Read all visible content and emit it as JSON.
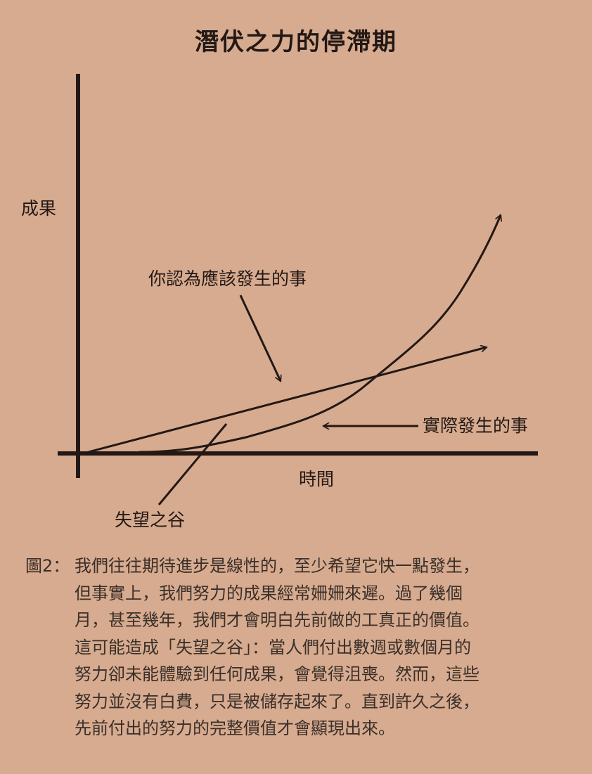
{
  "title": "潛伏之力的停滯期",
  "diagram": {
    "y_axis_label": "成果",
    "x_axis_label": "時間",
    "expected_label": "你認為應該發生的事",
    "actual_label": "實際發生的事",
    "valley_label": "失望之谷",
    "line_color": "#231815",
    "background": "#d7ab8f"
  },
  "caption": {
    "prefix": "圖2：",
    "lines": [
      "我們往往期待進步是線性的，至少希望它快一點發生，",
      "但事實上，我們努力的成果經常姍姍來遲。過了幾個",
      "月，甚至幾年，我們才會明白先前做的工真正的價值。",
      "這可能造成「失望之谷」：當人們付出數週或數個月的",
      "努力卻未能體驗到任何成果，會覺得沮喪。然而，這些",
      "努力並沒有白費，只是被儲存起來了。直到許久之後，",
      "先前付出的努力的完整價值才會顯現出來。"
    ]
  }
}
